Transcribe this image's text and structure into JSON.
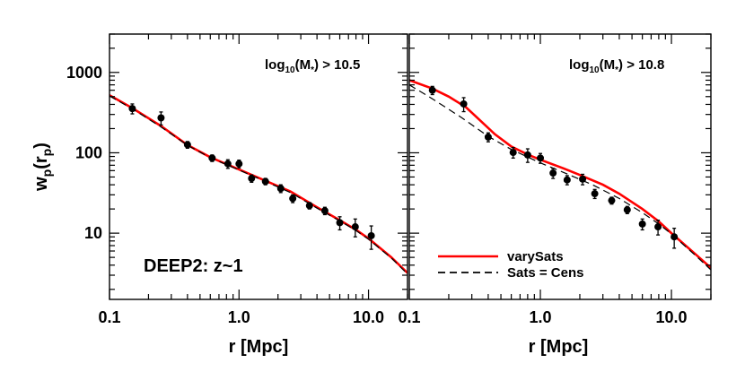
{
  "chart_data": [
    {
      "type": "line",
      "panel": "left",
      "annotation_top": {
        "prefix": "log",
        "sub": "10",
        "mid": "(M",
        "sub2": "*",
        "suffix": ") > 10.5"
      },
      "annotation_inner": "DEEP2: z~1",
      "xlabel": "r [Mpc]",
      "ylabel": "w_p(r_p)",
      "xscale": "log",
      "yscale": "log",
      "xlim": [
        0.1,
        20
      ],
      "ylim": [
        1.5,
        3000
      ],
      "xticks": [
        {
          "v": 0.1,
          "label": "0.1"
        },
        {
          "v": 1.0,
          "label": "1.0"
        },
        {
          "v": 10.0,
          "label": "10.0"
        }
      ],
      "yticks": [
        {
          "v": 10,
          "label": "10"
        },
        {
          "v": 100,
          "label": "100"
        },
        {
          "v": 1000,
          "label": "1000"
        }
      ],
      "points": [
        {
          "x": 0.15,
          "y": 355,
          "err": 50
        },
        {
          "x": 0.25,
          "y": 272,
          "err": 50
        },
        {
          "x": 0.4,
          "y": 126,
          "err": 12
        },
        {
          "x": 0.62,
          "y": 86,
          "err": 8
        },
        {
          "x": 0.82,
          "y": 73,
          "err": 9
        },
        {
          "x": 1.0,
          "y": 73,
          "err": 8
        },
        {
          "x": 1.25,
          "y": 48,
          "err": 5
        },
        {
          "x": 1.6,
          "y": 44,
          "err": 4
        },
        {
          "x": 2.1,
          "y": 36,
          "err": 4
        },
        {
          "x": 2.6,
          "y": 27,
          "err": 3
        },
        {
          "x": 3.5,
          "y": 22,
          "err": 2
        },
        {
          "x": 4.6,
          "y": 19,
          "err": 2
        },
        {
          "x": 6.0,
          "y": 13.5,
          "err": 2.5
        },
        {
          "x": 7.9,
          "y": 12,
          "err": 3
        },
        {
          "x": 10.5,
          "y": 9.3,
          "err": 3
        }
      ],
      "series": [
        {
          "name": "varySats",
          "color": "#ff0000",
          "style": "solid",
          "x": [
            0.1,
            0.15,
            0.25,
            0.4,
            0.6,
            1.0,
            1.5,
            2.5,
            4.0,
            6.0,
            8.0,
            10.0,
            15.0,
            20.0
          ],
          "y": [
            520,
            360,
            215,
            125,
            88,
            62,
            47,
            33,
            21,
            14.5,
            11,
            8.6,
            5.0,
            3.2
          ]
        },
        {
          "name": "Sats = Cens",
          "color": "#000000",
          "style": "dashed",
          "x": [
            0.1,
            0.15,
            0.25,
            0.4,
            0.6,
            1.0,
            1.5,
            2.5,
            4.0,
            6.0,
            8.0,
            10.0,
            15.0,
            20.0
          ],
          "y": [
            510,
            352,
            210,
            124,
            87,
            61,
            46,
            32,
            20.5,
            14.2,
            10.8,
            8.4,
            4.9,
            3.1
          ]
        }
      ]
    },
    {
      "type": "line",
      "panel": "right",
      "annotation_top": {
        "prefix": "log",
        "sub": "10",
        "mid": "(M",
        "sub2": "*",
        "suffix": ") > 10.8"
      },
      "xlabel": "r [Mpc]",
      "xscale": "log",
      "yscale": "log",
      "xlim": [
        0.1,
        20
      ],
      "ylim": [
        1.5,
        3000
      ],
      "xticks": [
        {
          "v": 0.1,
          "label": "0.1"
        },
        {
          "v": 1.0,
          "label": "1.0"
        },
        {
          "v": 10.0,
          "label": "10.0"
        }
      ],
      "points": [
        {
          "x": 0.15,
          "y": 600,
          "err": 70
        },
        {
          "x": 0.26,
          "y": 405,
          "err": 80
        },
        {
          "x": 0.4,
          "y": 157,
          "err": 20
        },
        {
          "x": 0.62,
          "y": 101,
          "err": 15
        },
        {
          "x": 0.8,
          "y": 94,
          "err": 18
        },
        {
          "x": 1.0,
          "y": 86,
          "err": 12
        },
        {
          "x": 1.25,
          "y": 56,
          "err": 8
        },
        {
          "x": 1.6,
          "y": 46,
          "err": 6
        },
        {
          "x": 2.1,
          "y": 47,
          "err": 7
        },
        {
          "x": 2.6,
          "y": 31,
          "err": 4
        },
        {
          "x": 3.5,
          "y": 25.5,
          "err": 2.5
        },
        {
          "x": 4.6,
          "y": 19.5,
          "err": 2
        },
        {
          "x": 6.0,
          "y": 13,
          "err": 2
        },
        {
          "x": 7.9,
          "y": 12,
          "err": 2.5
        },
        {
          "x": 10.5,
          "y": 9,
          "err": 2.5
        }
      ],
      "series": [
        {
          "name": "varySats",
          "color": "#ff0000",
          "style": "solid",
          "x": [
            0.1,
            0.15,
            0.2,
            0.27,
            0.35,
            0.45,
            0.6,
            0.8,
            1.0,
            1.5,
            2.0,
            3.0,
            4.0,
            6.0,
            8.0,
            10.0,
            15.0,
            20.0
          ],
          "y": [
            800,
            630,
            500,
            370,
            250,
            170,
            120,
            95,
            82,
            64,
            53,
            40,
            31,
            20,
            14,
            10,
            5.6,
            3.7
          ]
        },
        {
          "name": "Sats = Cens",
          "color": "#000000",
          "style": "dashed",
          "x": [
            0.1,
            0.15,
            0.25,
            0.4,
            0.6,
            1.0,
            1.5,
            2.5,
            4.0,
            6.0,
            8.0,
            10.0,
            15.0,
            20.0
          ],
          "y": [
            700,
            470,
            275,
            160,
            110,
            75,
            57,
            40,
            27,
            18,
            13,
            9.8,
            5.4,
            3.5
          ]
        }
      ],
      "legend": {
        "placement": "bottom-right",
        "entries": [
          {
            "label": "varySats",
            "color": "#ff0000",
            "style": "solid"
          },
          {
            "label": "Sats = Cens",
            "color": "#000000",
            "style": "dashed"
          }
        ]
      }
    }
  ]
}
